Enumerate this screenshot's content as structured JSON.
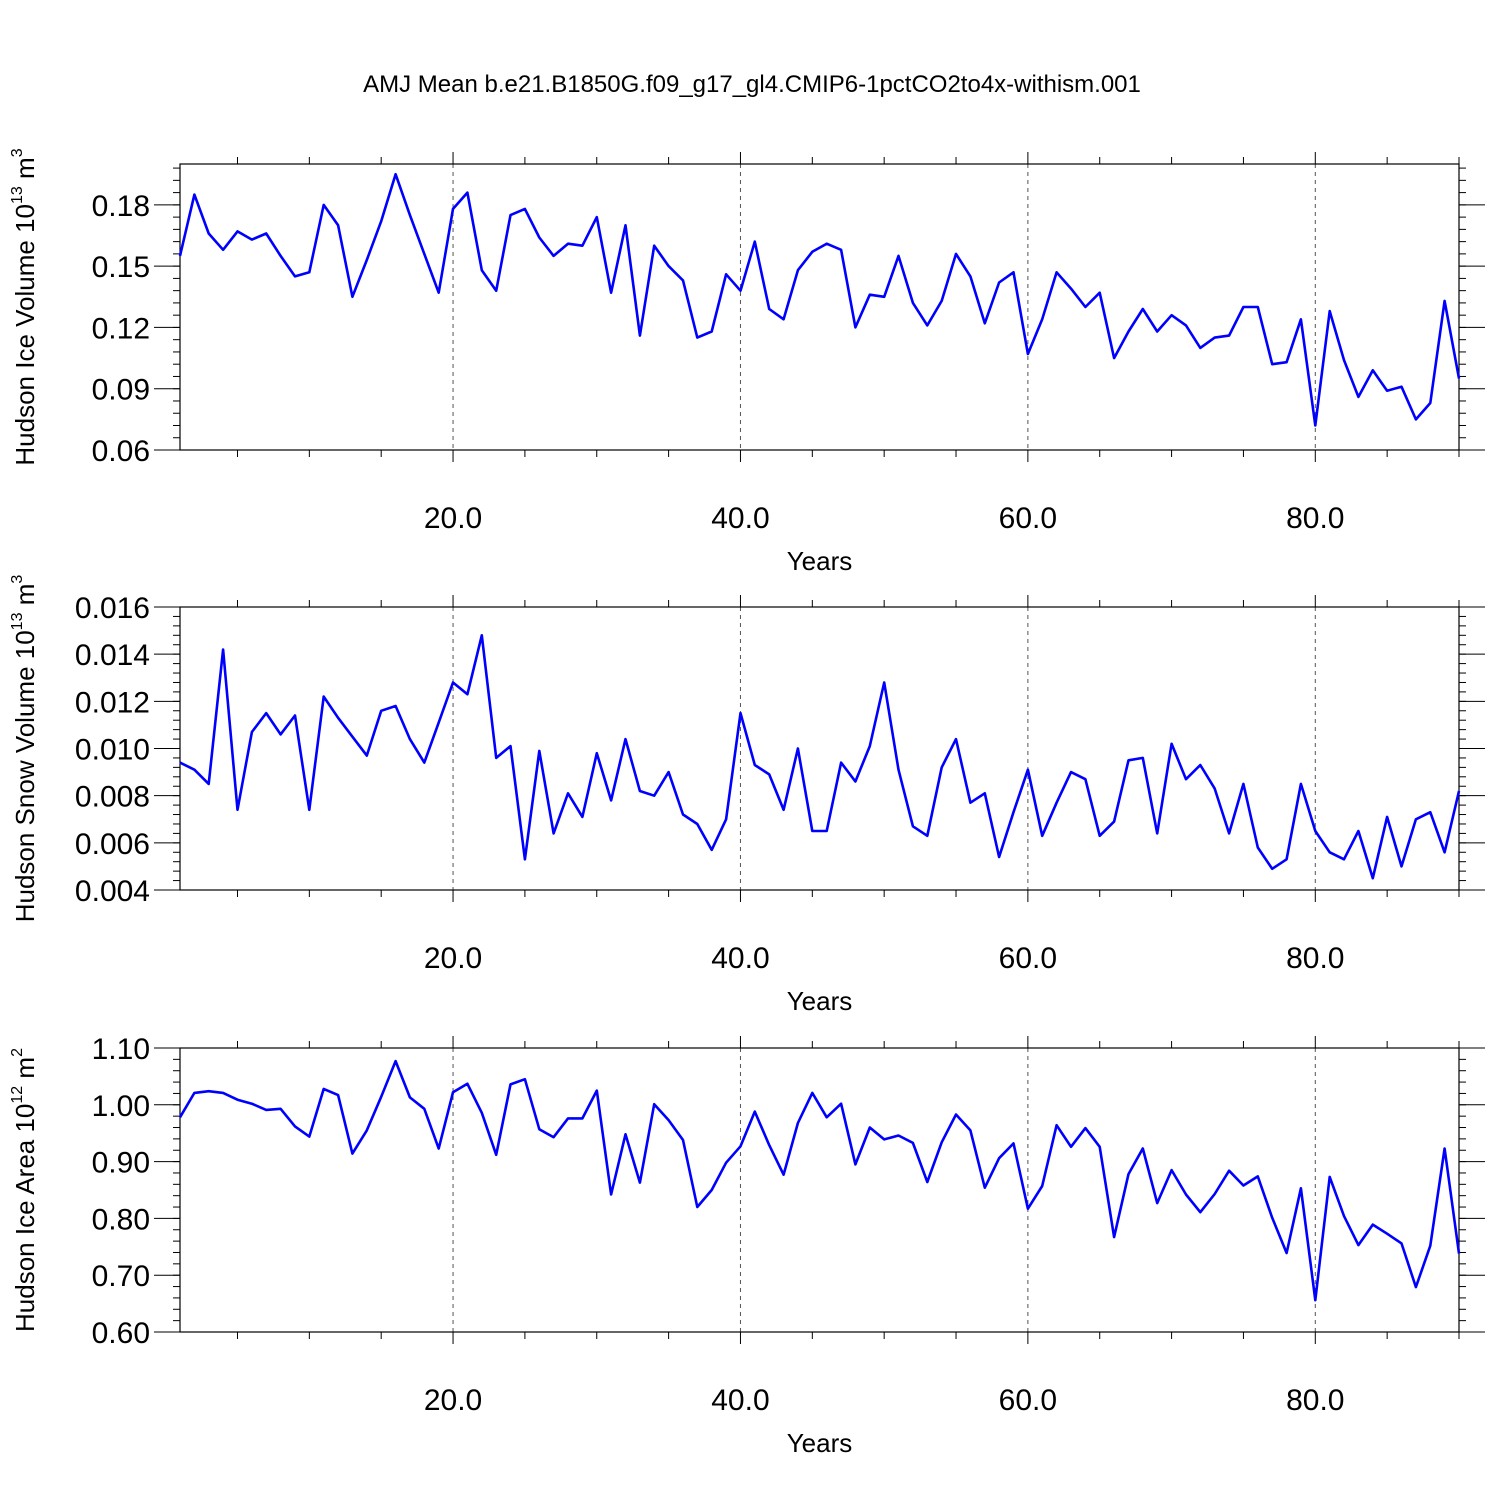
{
  "title": "AMJ Mean b.e21.B1850G.f09_g17_gl4.CMIP6-1pctCO2to4x-withism.001",
  "colors": {
    "line": "#0000ff",
    "axis": "#000000",
    "grid": "#555555"
  },
  "chart_data": [
    {
      "type": "line",
      "xlabel": "Years",
      "ylabel_main": "Hudson Ice Volume 10",
      "ylabel_exp": "13",
      "ylabel_unit": " m",
      "ylabel_unit_exp": "3",
      "xlim": [
        1,
        90
      ],
      "ylim": [
        0.06,
        0.2
      ],
      "xticks": [
        20,
        40,
        60,
        80
      ],
      "xtick_labels": [
        "20.0",
        "40.0",
        "60.0",
        "80.0"
      ],
      "yticks": [
        0.06,
        0.09,
        0.12,
        0.15,
        0.18
      ],
      "ytick_labels": [
        "0.06",
        "0.09",
        "0.12",
        "0.15",
        "0.18"
      ],
      "grid_x": true,
      "x": [
        1,
        2,
        3,
        4,
        5,
        6,
        7,
        8,
        9,
        10,
        11,
        12,
        13,
        14,
        15,
        16,
        17,
        18,
        19,
        20,
        21,
        22,
        23,
        24,
        25,
        26,
        27,
        28,
        29,
        30,
        31,
        32,
        33,
        34,
        35,
        36,
        37,
        38,
        39,
        40,
        41,
        42,
        43,
        44,
        45,
        46,
        47,
        48,
        49,
        50,
        51,
        52,
        53,
        54,
        55,
        56,
        57,
        58,
        59,
        60,
        61,
        62,
        63,
        64,
        65,
        66,
        67,
        68,
        69,
        70,
        71,
        72,
        73,
        74,
        75,
        76,
        77,
        78,
        79,
        80,
        81,
        82,
        83,
        84,
        85,
        86,
        87,
        88,
        89,
        90
      ],
      "series": [
        {
          "values": [
            0.155,
            0.185,
            0.166,
            0.158,
            0.167,
            0.163,
            0.166,
            0.155,
            0.145,
            0.147,
            0.18,
            0.17,
            0.135,
            0.153,
            0.172,
            0.195,
            0.175,
            0.156,
            0.137,
            0.178,
            0.186,
            0.148,
            0.138,
            0.175,
            0.178,
            0.164,
            0.155,
            0.161,
            0.16,
            0.174,
            0.137,
            0.17,
            0.116,
            0.16,
            0.15,
            0.143,
            0.115,
            0.118,
            0.146,
            0.138,
            0.162,
            0.129,
            0.124,
            0.148,
            0.157,
            0.161,
            0.158,
            0.12,
            0.136,
            0.135,
            0.155,
            0.132,
            0.121,
            0.133,
            0.156,
            0.145,
            0.122,
            0.142,
            0.147,
            0.107,
            0.124,
            0.147,
            0.139,
            0.13,
            0.137,
            0.105,
            0.118,
            0.129,
            0.118,
            0.126,
            0.121,
            0.11,
            0.115,
            0.116,
            0.13,
            0.13,
            0.102,
            0.103,
            0.124,
            0.072,
            0.128,
            0.104,
            0.086,
            0.099,
            0.089,
            0.091,
            0.075,
            0.083,
            0.133,
            0.095
          ]
        }
      ]
    },
    {
      "type": "line",
      "xlabel": "Years",
      "ylabel_main": "Hudson Snow Volume 10",
      "ylabel_exp": "13",
      "ylabel_unit": " m",
      "ylabel_unit_exp": "3",
      "xlim": [
        1,
        90
      ],
      "ylim": [
        0.004,
        0.016
      ],
      "xticks": [
        20,
        40,
        60,
        80
      ],
      "xtick_labels": [
        "20.0",
        "40.0",
        "60.0",
        "80.0"
      ],
      "yticks": [
        0.004,
        0.006,
        0.008,
        0.01,
        0.012,
        0.014,
        0.016
      ],
      "ytick_labels": [
        "0.004",
        "0.006",
        "0.008",
        "0.010",
        "0.012",
        "0.014",
        "0.016"
      ],
      "grid_x": true,
      "x": [
        1,
        2,
        3,
        4,
        5,
        6,
        7,
        8,
        9,
        10,
        11,
        12,
        13,
        14,
        15,
        16,
        17,
        18,
        19,
        20,
        21,
        22,
        23,
        24,
        25,
        26,
        27,
        28,
        29,
        30,
        31,
        32,
        33,
        34,
        35,
        36,
        37,
        38,
        39,
        40,
        41,
        42,
        43,
        44,
        45,
        46,
        47,
        48,
        49,
        50,
        51,
        52,
        53,
        54,
        55,
        56,
        57,
        58,
        59,
        60,
        61,
        62,
        63,
        64,
        65,
        66,
        67,
        68,
        69,
        70,
        71,
        72,
        73,
        74,
        75,
        76,
        77,
        78,
        79,
        80,
        81,
        82,
        83,
        84,
        85,
        86,
        87,
        88,
        89,
        90
      ],
      "series": [
        {
          "values": [
            0.0094,
            0.0091,
            0.0085,
            0.0142,
            0.0074,
            0.0107,
            0.0115,
            0.0106,
            0.0114,
            0.0074,
            0.0122,
            0.0113,
            0.0105,
            0.0097,
            0.0116,
            0.0118,
            0.0104,
            0.0094,
            0.0111,
            0.0128,
            0.0123,
            0.0148,
            0.0096,
            0.0101,
            0.0053,
            0.0099,
            0.0064,
            0.0081,
            0.0071,
            0.0098,
            0.0078,
            0.0104,
            0.0082,
            0.008,
            0.009,
            0.0072,
            0.0068,
            0.0057,
            0.007,
            0.0115,
            0.0093,
            0.0089,
            0.0074,
            0.01,
            0.0065,
            0.0065,
            0.0094,
            0.0086,
            0.0101,
            0.0128,
            0.0091,
            0.0067,
            0.0063,
            0.0092,
            0.0104,
            0.0077,
            0.0081,
            0.0054,
            0.0073,
            0.0091,
            0.0063,
            0.0077,
            0.009,
            0.0087,
            0.0063,
            0.0069,
            0.0095,
            0.0096,
            0.0064,
            0.0102,
            0.0087,
            0.0093,
            0.0083,
            0.0064,
            0.0085,
            0.0058,
            0.0049,
            0.0053,
            0.0085,
            0.0065,
            0.0056,
            0.0053,
            0.0065,
            0.0045,
            0.0071,
            0.005,
            0.007,
            0.0073,
            0.0056,
            0.0082
          ]
        }
      ]
    },
    {
      "type": "line",
      "xlabel": "Years",
      "ylabel_main": "Hudson Ice Area 10",
      "ylabel_exp": "12",
      "ylabel_unit": " m",
      "ylabel_unit_exp": "2",
      "xlim": [
        1,
        90
      ],
      "ylim": [
        0.6,
        1.1
      ],
      "xticks": [
        20,
        40,
        60,
        80
      ],
      "xtick_labels": [
        "20.0",
        "40.0",
        "60.0",
        "80.0"
      ],
      "yticks": [
        0.6,
        0.7,
        0.8,
        0.9,
        1.0,
        1.1
      ],
      "ytick_labels": [
        "0.60",
        "0.70",
        "0.80",
        "0.90",
        "1.00",
        "1.10"
      ],
      "grid_x": true,
      "x": [
        1,
        2,
        3,
        4,
        5,
        6,
        7,
        8,
        9,
        10,
        11,
        12,
        13,
        14,
        15,
        16,
        17,
        18,
        19,
        20,
        21,
        22,
        23,
        24,
        25,
        26,
        27,
        28,
        29,
        30,
        31,
        32,
        33,
        34,
        35,
        36,
        37,
        38,
        39,
        40,
        41,
        42,
        43,
        44,
        45,
        46,
        47,
        48,
        49,
        50,
        51,
        52,
        53,
        54,
        55,
        56,
        57,
        58,
        59,
        60,
        61,
        62,
        63,
        64,
        65,
        66,
        67,
        68,
        69,
        70,
        71,
        72,
        73,
        74,
        75,
        76,
        77,
        78,
        79,
        80,
        81,
        82,
        83,
        84,
        85,
        86,
        87,
        88,
        89,
        90
      ],
      "series": [
        {
          "values": [
            0.978,
            1.021,
            1.024,
            1.021,
            1.009,
            1.002,
            0.991,
            0.993,
            0.962,
            0.944,
            1.028,
            1.017,
            0.914,
            0.955,
            1.014,
            1.077,
            1.013,
            0.993,
            0.923,
            1.022,
            1.037,
            0.986,
            0.912,
            1.036,
            1.045,
            0.957,
            0.943,
            0.976,
            0.976,
            1.025,
            0.842,
            0.948,
            0.863,
            1.001,
            0.973,
            0.938,
            0.82,
            0.85,
            0.898,
            0.927,
            0.988,
            0.929,
            0.877,
            0.968,
            1.021,
            0.978,
            1.002,
            0.895,
            0.96,
            0.939,
            0.946,
            0.933,
            0.864,
            0.934,
            0.983,
            0.955,
            0.854,
            0.906,
            0.932,
            0.817,
            0.857,
            0.964,
            0.926,
            0.959,
            0.926,
            0.767,
            0.878,
            0.923,
            0.827,
            0.885,
            0.842,
            0.811,
            0.843,
            0.884,
            0.858,
            0.874,
            0.801,
            0.739,
            0.853,
            0.656,
            0.873,
            0.804,
            0.753,
            0.789,
            0.773,
            0.756,
            0.679,
            0.752,
            0.923,
            0.738
          ]
        }
      ]
    }
  ]
}
